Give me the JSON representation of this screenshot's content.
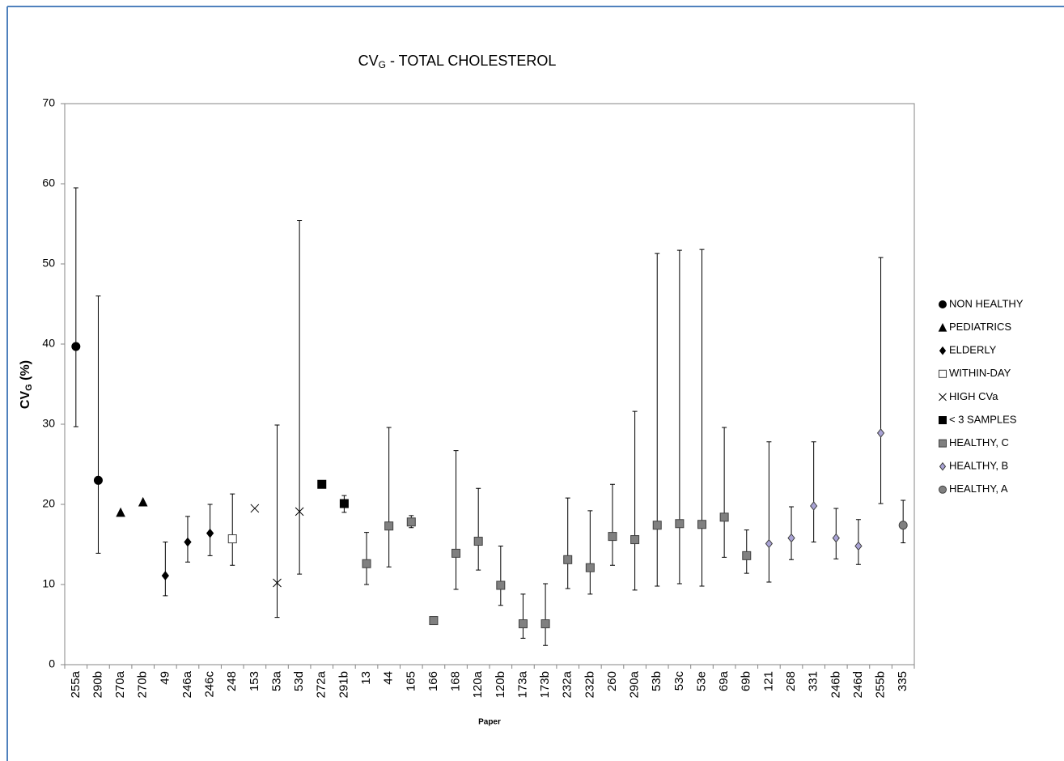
{
  "chart_data": {
    "type": "errorbar",
    "title": "CV",
    "title_sub": "G",
    "title_rest": " - TOTAL CHOLESTEROL",
    "ylabel": "CV",
    "ylabel_sub": "G",
    "ylabel_rest": " (%)",
    "xlabel": "Paper",
    "ylim": [
      0,
      70
    ],
    "yticks": [
      0,
      10,
      20,
      30,
      40,
      50,
      60,
      70
    ],
    "grid": false,
    "legend": "right",
    "categories": [
      "255a",
      "290b",
      "270a",
      "270b",
      "49",
      "246a",
      "246c",
      "248",
      "153",
      "53a",
      "53d",
      "272a",
      "291b",
      "13",
      "44",
      "165",
      "166",
      "168",
      "120a",
      "120b",
      "173a",
      "173b",
      "232a",
      "232b",
      "260",
      "290a",
      "53b",
      "53c",
      "53e",
      "69a",
      "69b",
      "121",
      "268",
      "331",
      "246b",
      "246d",
      "255b",
      "335"
    ],
    "series": [
      {
        "name": "NON HEALTHY",
        "color": "#000000",
        "marker": "circle",
        "values": [
          39.7,
          23.0,
          null,
          null,
          null,
          null,
          null,
          null,
          null,
          null,
          null,
          null,
          null,
          null,
          null,
          null,
          null,
          null,
          null,
          null,
          null,
          null,
          null,
          null,
          null,
          null,
          null,
          null,
          null,
          null,
          null,
          null,
          null,
          null,
          null,
          null,
          null,
          null
        ],
        "err_low": [
          29.7,
          13.9,
          null,
          null,
          null,
          null,
          null,
          null,
          null,
          null,
          null,
          null,
          null,
          null,
          null,
          null,
          null,
          null,
          null,
          null,
          null,
          null,
          null,
          null,
          null,
          null,
          null,
          null,
          null,
          null,
          null,
          null,
          null,
          null,
          null,
          null,
          null,
          null
        ],
        "err_high": [
          59.5,
          46.0,
          null,
          null,
          null,
          null,
          null,
          null,
          null,
          null,
          null,
          null,
          null,
          null,
          null,
          null,
          null,
          null,
          null,
          null,
          null,
          null,
          null,
          null,
          null,
          null,
          null,
          null,
          null,
          null,
          null,
          null,
          null,
          null,
          null,
          null,
          null,
          null
        ]
      },
      {
        "name": "PEDIATRICS",
        "color": "#000000",
        "marker": "triangle",
        "values": [
          null,
          null,
          19.0,
          20.3,
          null,
          null,
          null,
          null,
          null,
          null,
          null,
          null,
          null,
          null,
          null,
          null,
          null,
          null,
          null,
          null,
          null,
          null,
          null,
          null,
          null,
          null,
          null,
          null,
          null,
          null,
          null,
          null,
          null,
          null,
          null,
          null,
          null,
          null
        ]
      },
      {
        "name": "ELDERLY",
        "color": "#000000",
        "marker": "diamond",
        "values": [
          null,
          null,
          null,
          null,
          11.1,
          15.3,
          16.4,
          null,
          null,
          null,
          null,
          null,
          null,
          null,
          null,
          null,
          null,
          null,
          null,
          null,
          null,
          null,
          null,
          null,
          null,
          null,
          null,
          null,
          null,
          null,
          null,
          null,
          null,
          null,
          null,
          null,
          null,
          null
        ],
        "err_low": [
          null,
          null,
          null,
          null,
          8.6,
          12.8,
          13.6,
          null,
          null,
          null,
          null,
          null,
          null,
          null,
          null,
          null,
          null,
          null,
          null,
          null,
          null,
          null,
          null,
          null,
          null,
          null,
          null,
          null,
          null,
          null,
          null,
          null,
          null,
          null,
          null,
          null,
          null,
          null
        ],
        "err_high": [
          null,
          null,
          null,
          null,
          15.3,
          18.5,
          20.0,
          null,
          null,
          null,
          null,
          null,
          null,
          null,
          null,
          null,
          null,
          null,
          null,
          null,
          null,
          null,
          null,
          null,
          null,
          null,
          null,
          null,
          null,
          null,
          null,
          null,
          null,
          null,
          null,
          null,
          null,
          null
        ]
      },
      {
        "name": "WITHIN-DAY",
        "color": "#ffffff",
        "marker": "square",
        "values": [
          null,
          null,
          null,
          null,
          null,
          null,
          null,
          15.7,
          null,
          null,
          null,
          null,
          null,
          null,
          null,
          null,
          null,
          null,
          null,
          null,
          null,
          null,
          null,
          null,
          null,
          null,
          null,
          null,
          null,
          null,
          null,
          null,
          null,
          null,
          null,
          null,
          null,
          null
        ],
        "err_low": [
          null,
          null,
          null,
          null,
          null,
          null,
          null,
          12.4,
          null,
          null,
          null,
          null,
          null,
          null,
          null,
          null,
          null,
          null,
          null,
          null,
          null,
          null,
          null,
          null,
          null,
          null,
          null,
          null,
          null,
          null,
          null,
          null,
          null,
          null,
          null,
          null,
          null,
          null
        ],
        "err_high": [
          null,
          null,
          null,
          null,
          null,
          null,
          null,
          21.3,
          null,
          null,
          null,
          null,
          null,
          null,
          null,
          null,
          null,
          null,
          null,
          null,
          null,
          null,
          null,
          null,
          null,
          null,
          null,
          null,
          null,
          null,
          null,
          null,
          null,
          null,
          null,
          null,
          null,
          null
        ]
      },
      {
        "name": "HIGH CVa",
        "color": "#000000",
        "marker": "x",
        "values": [
          null,
          null,
          null,
          null,
          null,
          null,
          null,
          null,
          19.5,
          10.2,
          19.1,
          null,
          null,
          null,
          null,
          null,
          null,
          null,
          null,
          null,
          null,
          null,
          null,
          null,
          null,
          null,
          null,
          null,
          null,
          null,
          null,
          null,
          null,
          null,
          null,
          null,
          null,
          null
        ],
        "err_low": [
          null,
          null,
          null,
          null,
          null,
          null,
          null,
          null,
          null,
          5.9,
          11.3,
          null,
          null,
          null,
          null,
          null,
          null,
          null,
          null,
          null,
          null,
          null,
          null,
          null,
          null,
          null,
          null,
          null,
          null,
          null,
          null,
          null,
          null,
          null,
          null,
          null,
          null,
          null
        ],
        "err_high": [
          null,
          null,
          null,
          null,
          null,
          null,
          null,
          null,
          null,
          29.9,
          55.4,
          null,
          null,
          null,
          null,
          null,
          null,
          null,
          null,
          null,
          null,
          null,
          null,
          null,
          null,
          null,
          null,
          null,
          null,
          null,
          null,
          null,
          null,
          null,
          null,
          null,
          null,
          null
        ]
      },
      {
        "name": "< 3 SAMPLES",
        "color": "#000000",
        "marker": "square",
        "values": [
          null,
          null,
          null,
          null,
          null,
          null,
          null,
          null,
          null,
          null,
          null,
          22.5,
          20.1,
          null,
          null,
          null,
          null,
          null,
          null,
          null,
          null,
          null,
          null,
          null,
          null,
          null,
          null,
          null,
          null,
          null,
          null,
          null,
          null,
          null,
          null,
          null,
          null,
          null
        ],
        "err_low": [
          null,
          null,
          null,
          null,
          null,
          null,
          null,
          null,
          null,
          null,
          null,
          null,
          19.0,
          null,
          null,
          null,
          null,
          null,
          null,
          null,
          null,
          null,
          null,
          null,
          null,
          null,
          null,
          null,
          null,
          null,
          null,
          null,
          null,
          null,
          null,
          null,
          null,
          null
        ],
        "err_high": [
          null,
          null,
          null,
          null,
          null,
          null,
          null,
          null,
          null,
          null,
          null,
          null,
          21.1,
          null,
          null,
          null,
          null,
          null,
          null,
          null,
          null,
          null,
          null,
          null,
          null,
          null,
          null,
          null,
          null,
          null,
          null,
          null,
          null,
          null,
          null,
          null,
          null,
          null
        ]
      },
      {
        "name": "HEALTHY, C",
        "color": "#808080",
        "marker": "square",
        "values": [
          null,
          null,
          null,
          null,
          null,
          null,
          null,
          null,
          null,
          null,
          null,
          null,
          null,
          12.6,
          17.3,
          17.8,
          5.5,
          13.9,
          15.4,
          9.9,
          5.1,
          5.1,
          13.1,
          12.1,
          16.0,
          15.6,
          17.4,
          17.6,
          17.5,
          18.4,
          13.6,
          null,
          null,
          null,
          null,
          null,
          null,
          null
        ],
        "err_low": [
          null,
          null,
          null,
          null,
          null,
          null,
          null,
          null,
          null,
          null,
          null,
          null,
          null,
          10.0,
          12.2,
          17.1,
          null,
          9.4,
          11.8,
          7.4,
          3.3,
          2.4,
          9.5,
          8.8,
          12.4,
          9.3,
          9.8,
          10.1,
          9.8,
          13.4,
          11.4,
          null,
          null,
          null,
          null,
          null,
          null,
          null
        ],
        "err_high": [
          null,
          null,
          null,
          null,
          null,
          null,
          null,
          null,
          null,
          null,
          null,
          null,
          null,
          16.5,
          29.6,
          18.6,
          null,
          26.7,
          22.0,
          14.8,
          8.8,
          10.1,
          20.8,
          19.2,
          22.5,
          31.6,
          51.3,
          51.7,
          51.8,
          29.6,
          16.8,
          null,
          null,
          null,
          null,
          null,
          null,
          null
        ]
      },
      {
        "name": "HEALTHY, B",
        "color": "#a9a3d6",
        "marker": "diamond",
        "values": [
          null,
          null,
          null,
          null,
          null,
          null,
          null,
          null,
          null,
          null,
          null,
          null,
          null,
          null,
          null,
          null,
          null,
          null,
          null,
          null,
          null,
          null,
          null,
          null,
          null,
          null,
          null,
          null,
          null,
          null,
          null,
          15.1,
          15.8,
          19.8,
          15.8,
          14.8,
          28.9,
          null
        ],
        "err_low": [
          null,
          null,
          null,
          null,
          null,
          null,
          null,
          null,
          null,
          null,
          null,
          null,
          null,
          null,
          null,
          null,
          null,
          null,
          null,
          null,
          null,
          null,
          null,
          null,
          null,
          null,
          null,
          null,
          null,
          null,
          null,
          10.3,
          13.1,
          15.3,
          13.2,
          12.5,
          20.1,
          null
        ],
        "err_high": [
          null,
          null,
          null,
          null,
          null,
          null,
          null,
          null,
          null,
          null,
          null,
          null,
          null,
          null,
          null,
          null,
          null,
          null,
          null,
          null,
          null,
          null,
          null,
          null,
          null,
          null,
          null,
          null,
          null,
          null,
          null,
          27.8,
          19.7,
          27.8,
          19.5,
          18.1,
          50.8,
          null
        ]
      },
      {
        "name": "HEALTHY, A",
        "color": "#808080",
        "marker": "circle",
        "values": [
          null,
          null,
          null,
          null,
          null,
          null,
          null,
          null,
          null,
          null,
          null,
          null,
          null,
          null,
          null,
          null,
          null,
          null,
          null,
          null,
          null,
          null,
          null,
          null,
          null,
          null,
          null,
          null,
          null,
          null,
          null,
          null,
          null,
          null,
          null,
          null,
          null,
          17.4
        ],
        "err_low": [
          null,
          null,
          null,
          null,
          null,
          null,
          null,
          null,
          null,
          null,
          null,
          null,
          null,
          null,
          null,
          null,
          null,
          null,
          null,
          null,
          null,
          null,
          null,
          null,
          null,
          null,
          null,
          null,
          null,
          null,
          null,
          null,
          null,
          null,
          null,
          null,
          null,
          15.2
        ],
        "err_high": [
          null,
          null,
          null,
          null,
          null,
          null,
          null,
          null,
          null,
          null,
          null,
          null,
          null,
          null,
          null,
          null,
          null,
          null,
          null,
          null,
          null,
          null,
          null,
          null,
          null,
          null,
          null,
          null,
          null,
          null,
          null,
          null,
          null,
          null,
          null,
          null,
          null,
          20.5
        ]
      }
    ]
  }
}
